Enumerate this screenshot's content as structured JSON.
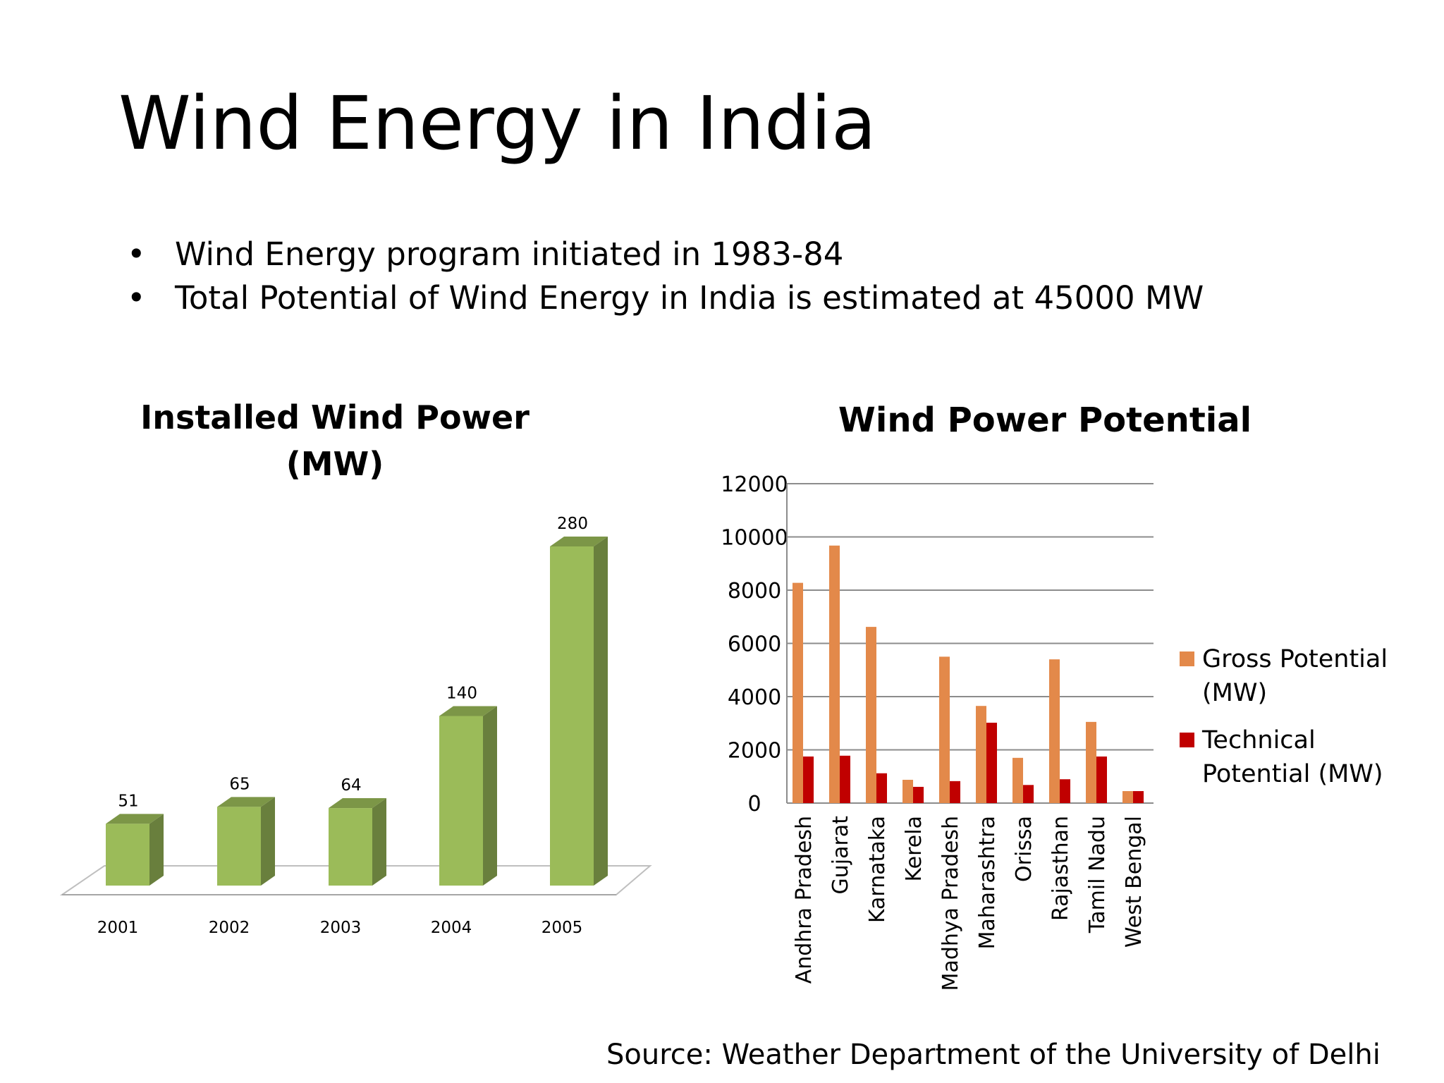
{
  "slide": {
    "title": "Wind Energy in India",
    "bullets": [
      "Wind Energy program initiated in 1983-84",
      "Total Potential of Wind Energy in India is estimated at 45000 MW"
    ],
    "source": "Source: Weather Department of the University of Delhi"
  },
  "chart_data": [
    {
      "type": "bar",
      "style": "3d-column",
      "title_lines": [
        "Installed Wind Power",
        "(MW)"
      ],
      "categories": [
        "2001",
        "2002",
        "2003",
        "2004",
        "2005"
      ],
      "values": [
        51,
        65,
        64,
        140,
        280
      ],
      "data_labels": [
        "51",
        "65",
        "64",
        "140",
        "280"
      ],
      "color": "#9bbb59",
      "grid": false,
      "legend": "none",
      "ylim": [
        0,
        280
      ]
    },
    {
      "type": "bar",
      "title": "Wind Power Potential",
      "categories": [
        "Andhra Pradesh",
        "Gujarat",
        "Karnataka",
        "Kerela",
        "Madhya Pradesh",
        "Maharashtra",
        "Orissa",
        "Rajasthan",
        "Tamil Nadu",
        "West Bengal"
      ],
      "series": [
        {
          "name_lines": [
            "Gross Potential",
            "(MW)"
          ],
          "color": "#e3894a",
          "values": [
            8275,
            9675,
            6620,
            875,
            5500,
            3650,
            1700,
            5400,
            3050,
            450
          ]
        },
        {
          "name_lines": [
            "Technical",
            "Potential (MW)"
          ],
          "color": "#c00000",
          "values": [
            1750,
            1780,
            1120,
            610,
            825,
            3020,
            680,
            895,
            1750,
            450
          ]
        }
      ],
      "ylim": [
        0,
        12000
      ],
      "yticks": [
        "0",
        "2000",
        "4000",
        "6000",
        "8000",
        "10000",
        "12000"
      ],
      "grid": true,
      "legend": "right"
    }
  ]
}
